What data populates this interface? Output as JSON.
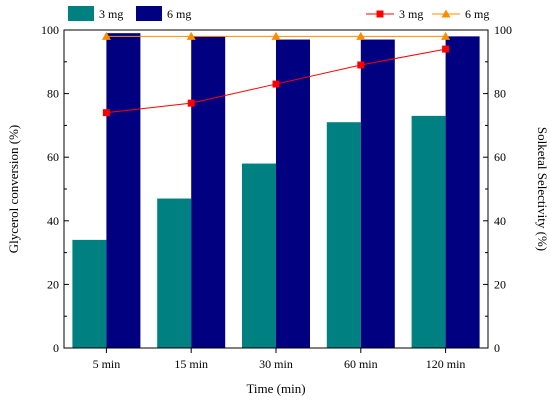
{
  "chart_data": {
    "type": "bar+line",
    "categories": [
      "5 min",
      "15 min",
      "30 min",
      "60 min",
      "120 min"
    ],
    "bar_series": [
      {
        "name": "3 mg",
        "color": "#008080",
        "values": [
          34,
          47,
          58,
          71,
          73
        ]
      },
      {
        "name": "6 mg",
        "color": "#000080",
        "values": [
          99,
          98,
          97,
          97,
          98
        ]
      }
    ],
    "line_series": [
      {
        "name": "3 mg",
        "color": "#ff0000",
        "marker": "square",
        "values": [
          74,
          77,
          83,
          89,
          94
        ]
      },
      {
        "name": "6 mg",
        "color": "#ff8c00",
        "marker": "triangle",
        "values": [
          98,
          98,
          98,
          98,
          98
        ]
      }
    ],
    "xlabel": "Time (min)",
    "ylabel_left": "Glycerol conversion (%)",
    "ylabel_right": "Solketal Selectivity (%)",
    "ylim_left": [
      0,
      100
    ],
    "ylim_right": [
      0,
      100
    ],
    "yticks_left": [
      0,
      20,
      40,
      60,
      80,
      100
    ],
    "yticks_right": [
      0,
      20,
      40,
      60,
      80,
      100
    ],
    "grid": false,
    "legend_bars_placement": "top-left",
    "legend_lines_placement": "top-right"
  }
}
